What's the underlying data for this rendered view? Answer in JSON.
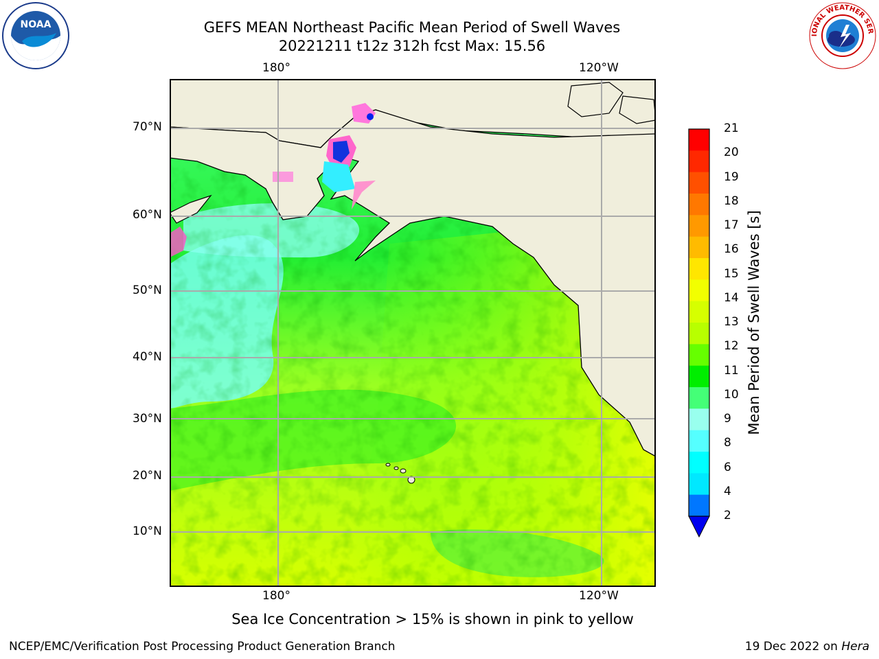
{
  "header": {
    "title_line1": "GEFS MEAN Northeast Pacific Mean Period of Swell Waves",
    "title_line2": "20221211 t12z 312h fcst   Max: 15.56"
  },
  "map": {
    "top_lon_labels": [
      "180°",
      "120°W"
    ],
    "bottom_lon_labels": [
      "180°",
      "120°W"
    ],
    "lat_labels": [
      "70°N",
      "60°N",
      "50°N",
      "40°N",
      "30°N",
      "20°N",
      "10°N"
    ]
  },
  "colorbar": {
    "label": "Mean Period of Swell Waves [s]",
    "ticks": [
      "21",
      "20",
      "19",
      "18",
      "17",
      "16",
      "15",
      "14",
      "13",
      "12",
      "11",
      "10",
      "9",
      "8",
      "6",
      "4",
      "2"
    ],
    "colors": [
      "#ff0000",
      "#ff2800",
      "#ff5000",
      "#ff7800",
      "#ff9900",
      "#ffbb00",
      "#ffe600",
      "#f2ff00",
      "#d6ff00",
      "#b8ff00",
      "#66ff00",
      "#00ee00",
      "#44ff77",
      "#99ffee",
      "#55ffff",
      "#00ffff",
      "#00e8ff",
      "#0077ff"
    ],
    "under_color": "#0000ee"
  },
  "caption": "Sea Ice Concentration > 15% is shown in pink to yellow",
  "footer": {
    "left": "NCEP/EMC/Verification Post Processing Product Generation Branch",
    "right_date": "19 Dec 2022 on ",
    "right_host": "Hera"
  },
  "logos": {
    "noaa_text": "NOAA",
    "nws_text": "NATIONAL WEATHER SERVICE"
  }
}
